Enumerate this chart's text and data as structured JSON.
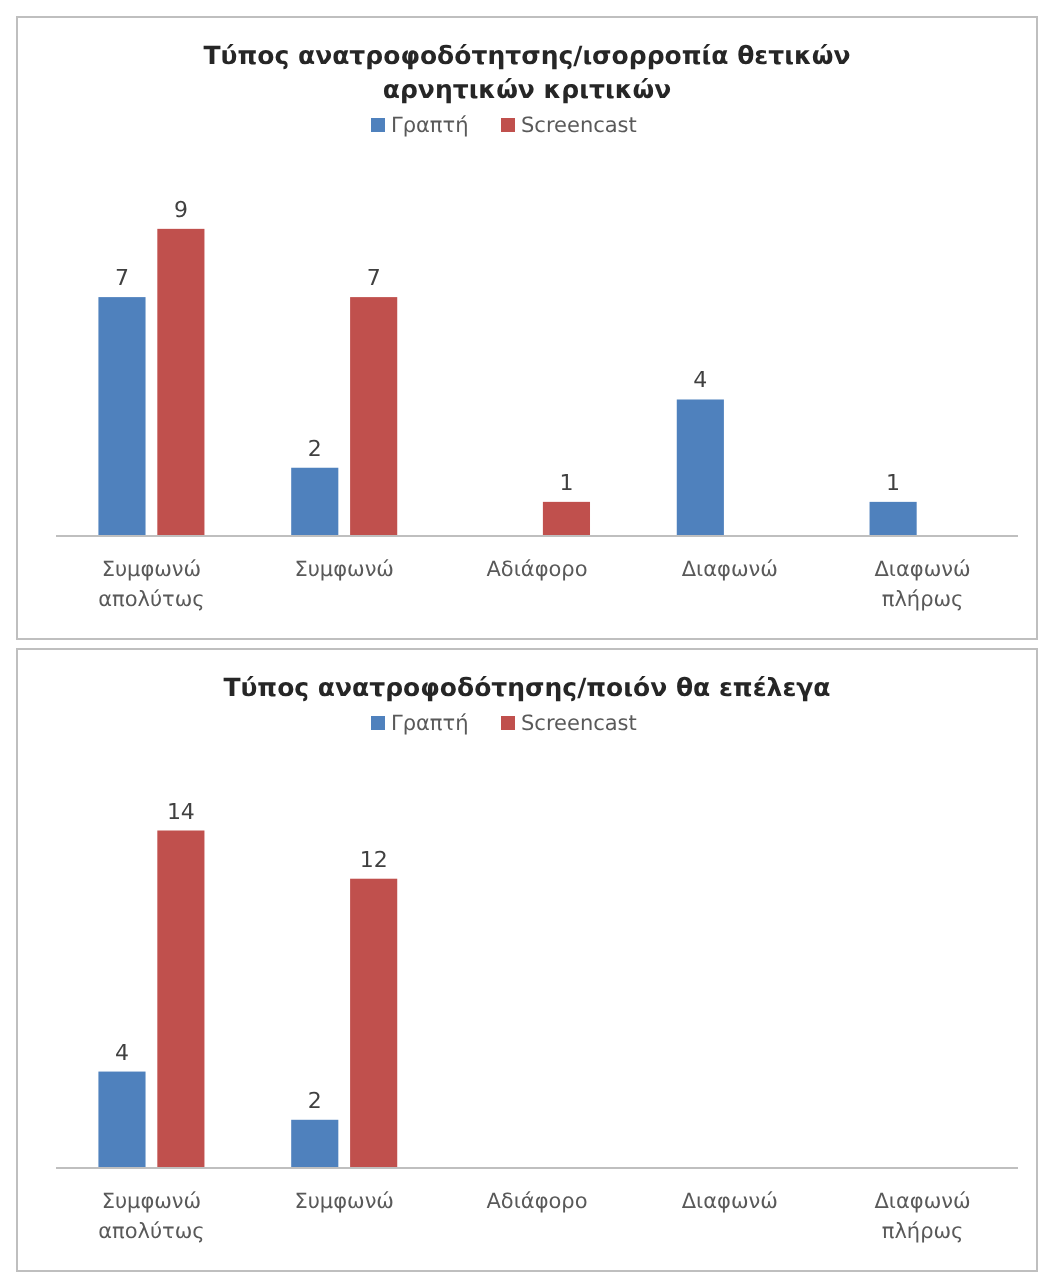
{
  "chart_data": [
    {
      "type": "bar",
      "title": "Τύπος ανατροφοδότητσης/ισορροπία θετικών αρνητικών κριτικών",
      "categories": [
        "Συμφωνώ απολύτως",
        "Συμφωνώ",
        "Αδιάφορο",
        "Διαφωνώ",
        "Διαφωνώ πλήρως"
      ],
      "series": [
        {
          "name": "Γραπτή",
          "color": "#4f81bd",
          "values": [
            7,
            2,
            null,
            4,
            1
          ]
        },
        {
          "name": "Screencast",
          "color": "#c0504d",
          "values": [
            9,
            7,
            1,
            null,
            null
          ]
        }
      ],
      "data_labels": true,
      "legend": "top"
    },
    {
      "type": "bar",
      "title": "Τύπος ανατροφοδότησης/ποιόν θα επέλεγα",
      "categories": [
        "Συμφωνώ απολύτως",
        "Συμφωνώ",
        "Αδιάφορο",
        "Διαφωνώ",
        "Διαφωνώ πλήρως"
      ],
      "series": [
        {
          "name": "Γραπτή",
          "color": "#4f81bd",
          "values": [
            4,
            2,
            null,
            null,
            null
          ]
        },
        {
          "name": "Screencast",
          "color": "#c0504d",
          "values": [
            14,
            12,
            null,
            null,
            null
          ]
        }
      ],
      "data_labels": true,
      "legend": "top"
    }
  ]
}
